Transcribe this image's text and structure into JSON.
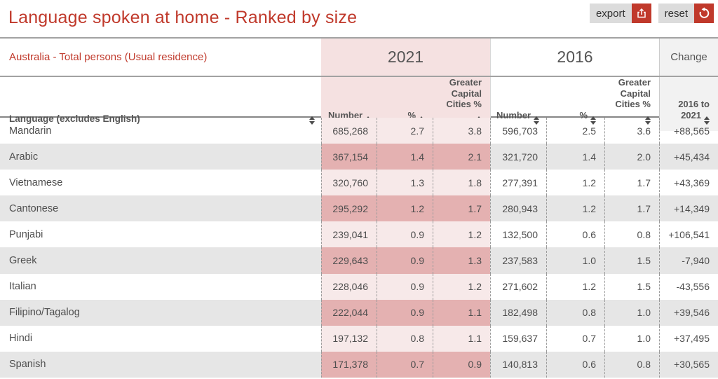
{
  "header": {
    "title": "Language spoken at home - Ranked by size",
    "export_label": "export",
    "reset_label": "reset"
  },
  "subtitle": "Australia - Total persons (Usual residence)",
  "year_groups": [
    {
      "id": "y2021",
      "label": "2021"
    },
    {
      "id": "y2016",
      "label": "2016"
    },
    {
      "id": "change",
      "label": "Change"
    }
  ],
  "columns": [
    {
      "id": "language",
      "label": "Language (excludes English)"
    },
    {
      "id": "n2021",
      "label": "Number"
    },
    {
      "id": "p2021",
      "label": "%"
    },
    {
      "id": "g2021",
      "label": "Greater Capital Cities %"
    },
    {
      "id": "n2016",
      "label": "Number"
    },
    {
      "id": "p2016",
      "label": "%"
    },
    {
      "id": "g2016",
      "label": "Greater Capital Cities %"
    },
    {
      "id": "change",
      "label": "2016 to 2021"
    }
  ],
  "icons": {
    "export": "share-export-icon",
    "reset": "reset-undo-icon",
    "sort": "sort-both-icon"
  },
  "colors": {
    "accent_red": "#c0392b",
    "pink_group_header": "#f5e1e1",
    "pink_row_light": "#f7e9e9",
    "pink_row_dark": "#e4b1b1",
    "gray_row": "#e6e6e6",
    "change_header_bg": "#f2f2f2"
  },
  "table": {
    "rows": [
      {
        "language": "Mandarin",
        "n2021": "685,268",
        "p2021": "2.7",
        "g2021": "3.8",
        "n2016": "596,703",
        "p2016": "2.5",
        "g2016": "3.6",
        "change": "+88,565"
      },
      {
        "language": "Arabic",
        "n2021": "367,154",
        "p2021": "1.4",
        "g2021": "2.1",
        "n2016": "321,720",
        "p2016": "1.4",
        "g2016": "2.0",
        "change": "+45,434"
      },
      {
        "language": "Vietnamese",
        "n2021": "320,760",
        "p2021": "1.3",
        "g2021": "1.8",
        "n2016": "277,391",
        "p2016": "1.2",
        "g2016": "1.7",
        "change": "+43,369"
      },
      {
        "language": "Cantonese",
        "n2021": "295,292",
        "p2021": "1.2",
        "g2021": "1.7",
        "n2016": "280,943",
        "p2016": "1.2",
        "g2016": "1.7",
        "change": "+14,349"
      },
      {
        "language": "Punjabi",
        "n2021": "239,041",
        "p2021": "0.9",
        "g2021": "1.2",
        "n2016": "132,500",
        "p2016": "0.6",
        "g2016": "0.8",
        "change": "+106,541"
      },
      {
        "language": "Greek",
        "n2021": "229,643",
        "p2021": "0.9",
        "g2021": "1.3",
        "n2016": "237,583",
        "p2016": "1.0",
        "g2016": "1.5",
        "change": "-7,940"
      },
      {
        "language": "Italian",
        "n2021": "228,046",
        "p2021": "0.9",
        "g2021": "1.2",
        "n2016": "271,602",
        "p2016": "1.2",
        "g2016": "1.5",
        "change": "-43,556"
      },
      {
        "language": "Filipino/Tagalog",
        "n2021": "222,044",
        "p2021": "0.9",
        "g2021": "1.1",
        "n2016": "182,498",
        "p2016": "0.8",
        "g2016": "1.0",
        "change": "+39,546"
      },
      {
        "language": "Hindi",
        "n2021": "197,132",
        "p2021": "0.8",
        "g2021": "1.1",
        "n2016": "159,637",
        "p2016": "0.7",
        "g2016": "1.0",
        "change": "+37,495"
      },
      {
        "language": "Spanish",
        "n2021": "171,378",
        "p2021": "0.7",
        "g2021": "0.9",
        "n2016": "140,813",
        "p2016": "0.6",
        "g2016": "0.8",
        "change": "+30,565"
      }
    ]
  }
}
